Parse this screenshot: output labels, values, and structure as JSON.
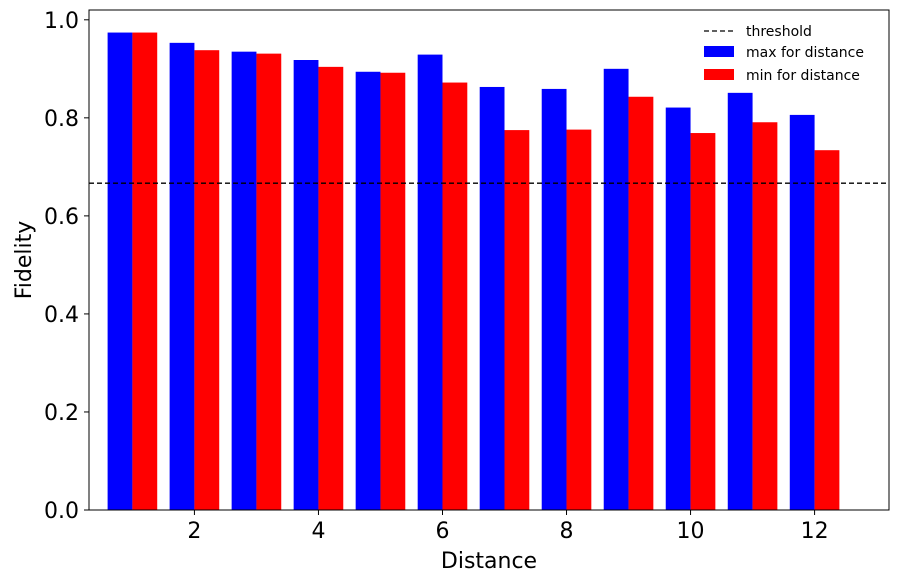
{
  "chart_data": {
    "type": "bar",
    "title": "",
    "xlabel": "Distance",
    "ylabel": "Fidelity",
    "x": [
      1,
      2,
      3,
      4,
      5,
      6,
      7,
      8,
      9,
      10,
      11,
      12
    ],
    "xticks": [
      2,
      4,
      6,
      8,
      10,
      12
    ],
    "xlim": [
      0.3,
      13.2
    ],
    "yticks": [
      "0.0",
      "0.2",
      "0.4",
      "0.6",
      "0.8",
      "1.0"
    ],
    "ylim": [
      0,
      1.02
    ],
    "grid": false,
    "legend_position": "top-right",
    "series": [
      {
        "name": "max for distance",
        "color": "#0000ff",
        "values": [
          0.974,
          0.953,
          0.935,
          0.918,
          0.894,
          0.929,
          0.863,
          0.859,
          0.9,
          0.821,
          0.851,
          0.806
        ]
      },
      {
        "name": "min for distance",
        "color": "#ff0000",
        "values": [
          0.974,
          0.938,
          0.931,
          0.904,
          0.892,
          0.872,
          0.775,
          0.776,
          0.843,
          0.769,
          0.791,
          0.734
        ]
      }
    ],
    "reference_lines": [
      {
        "name": "threshold",
        "y": 0.6667,
        "style": "dashed",
        "color": "#000000"
      }
    ]
  }
}
